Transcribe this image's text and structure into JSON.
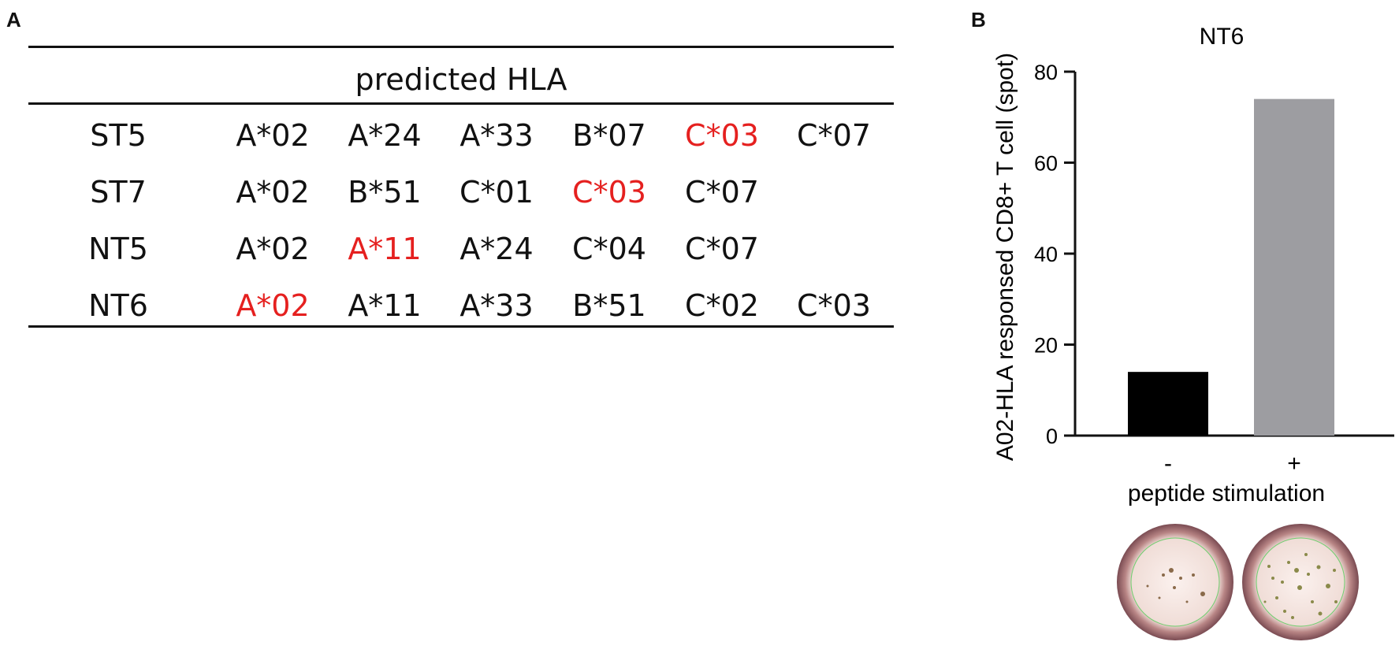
{
  "panel_a": {
    "label": "A",
    "header": "predicted HLA",
    "rows": [
      {
        "sample": "ST5",
        "alleles": [
          {
            "text": "A*02",
            "highlight": false
          },
          {
            "text": "A*24",
            "highlight": false
          },
          {
            "text": "A*33",
            "highlight": false
          },
          {
            "text": "B*07",
            "highlight": false
          },
          {
            "text": "C*03",
            "highlight": true
          },
          {
            "text": "C*07",
            "highlight": false
          }
        ]
      },
      {
        "sample": "ST7",
        "alleles": [
          {
            "text": "A*02",
            "highlight": false
          },
          {
            "text": "B*51",
            "highlight": false
          },
          {
            "text": "C*01",
            "highlight": false
          },
          {
            "text": "C*03",
            "highlight": true
          },
          {
            "text": "C*07",
            "highlight": false
          }
        ]
      },
      {
        "sample": "NT5",
        "alleles": [
          {
            "text": "A*02",
            "highlight": false
          },
          {
            "text": "A*11",
            "highlight": true
          },
          {
            "text": "A*24",
            "highlight": false
          },
          {
            "text": "C*04",
            "highlight": false
          },
          {
            "text": "C*07",
            "highlight": false
          }
        ]
      },
      {
        "sample": "NT6",
        "alleles": [
          {
            "text": "A*02",
            "highlight": true
          },
          {
            "text": "A*11",
            "highlight": false
          },
          {
            "text": "A*33",
            "highlight": false
          },
          {
            "text": "B*51",
            "highlight": false
          },
          {
            "text": "C*02",
            "highlight": false
          },
          {
            "text": "C*03",
            "highlight": false
          }
        ]
      }
    ],
    "highlight_color": "#e5201f"
  },
  "panel_b": {
    "label": "B",
    "wells": [
      "-",
      "+"
    ]
  },
  "chart_data": {
    "type": "bar",
    "title": "NT6",
    "categories": [
      "-",
      "+"
    ],
    "values": [
      14,
      74
    ],
    "colors": [
      "#000000",
      "#9d9da1"
    ],
    "xlabel": "peptide stimulation",
    "ylabel": "A02-HLA responsed CD8+ T cell (spot)",
    "ylim": [
      0,
      80
    ],
    "yticks": [
      0,
      20,
      40,
      60,
      80
    ],
    "grid": false
  }
}
